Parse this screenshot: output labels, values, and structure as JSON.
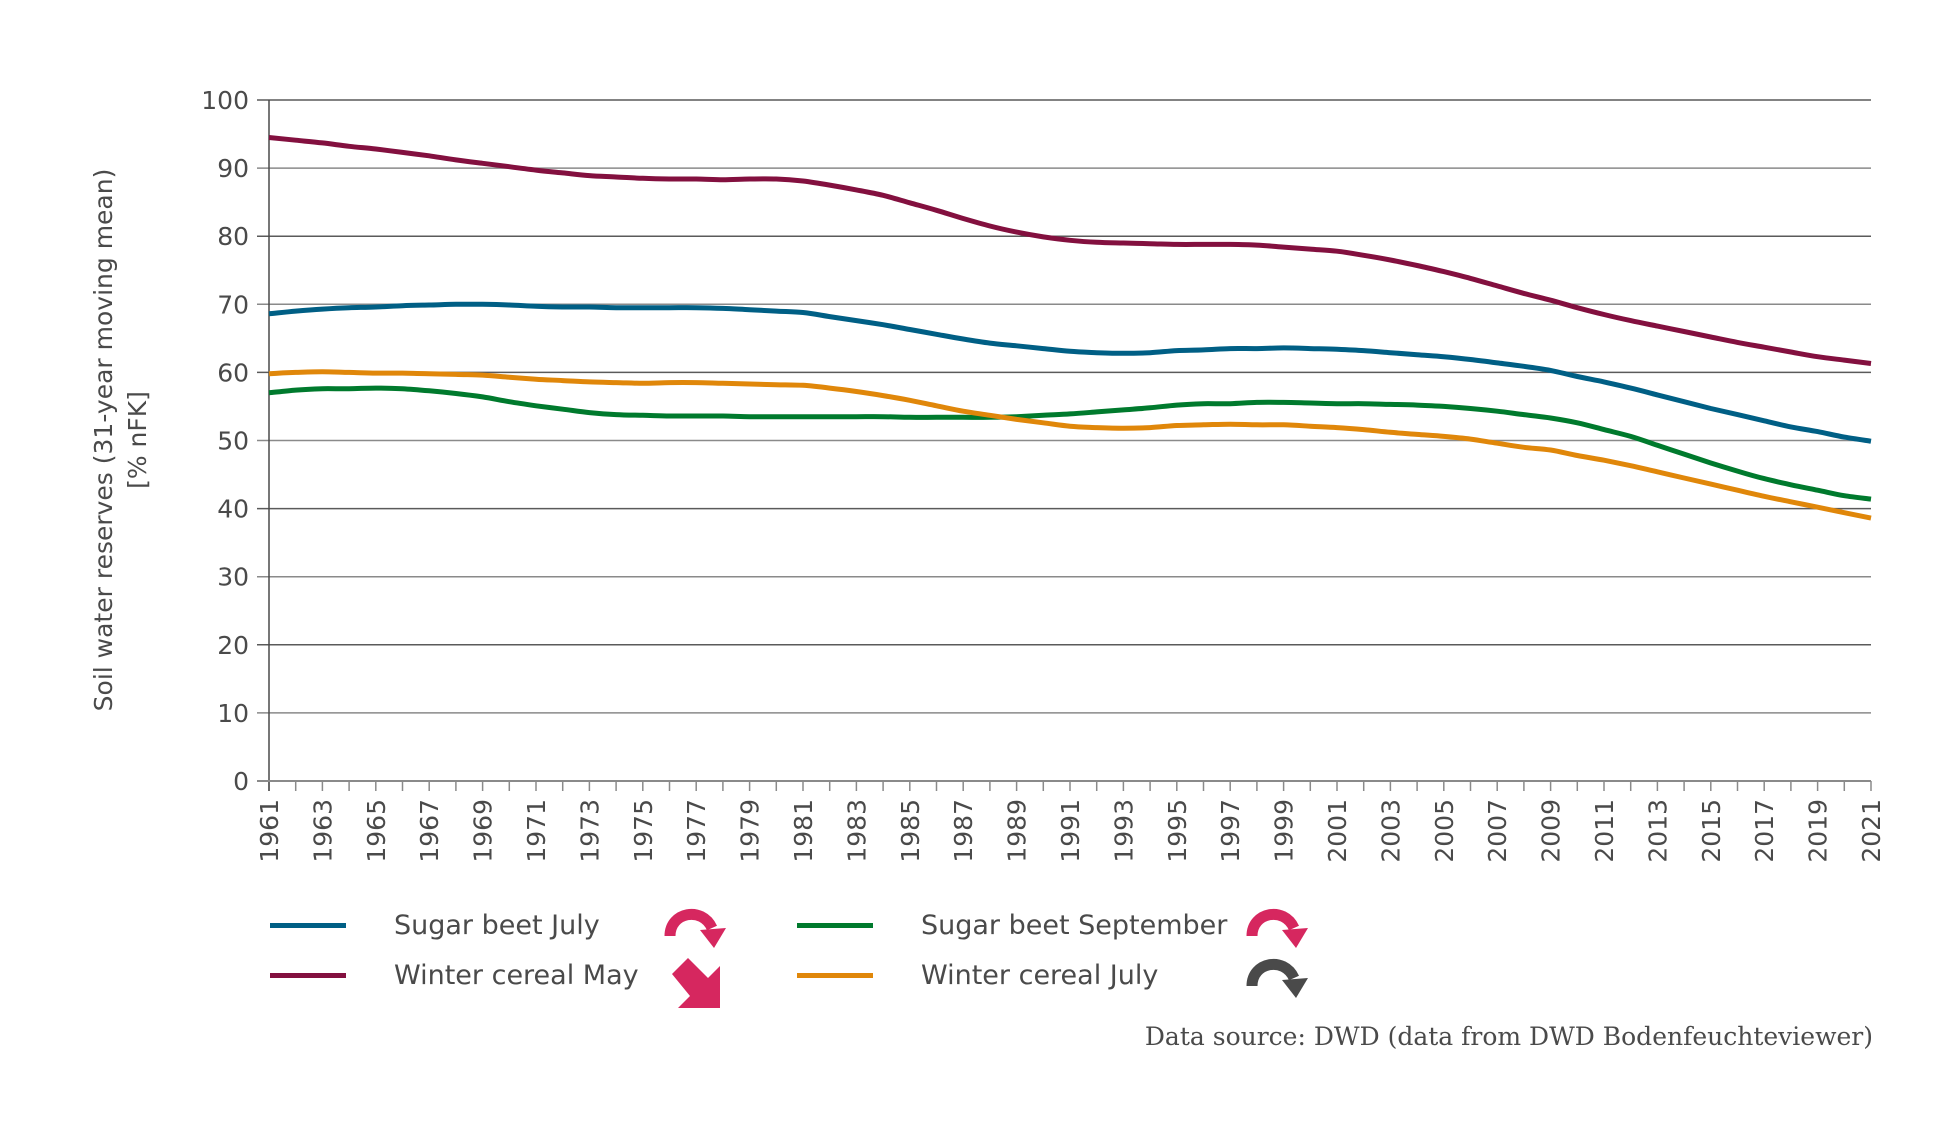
{
  "chart_data": {
    "type": "line",
    "title": "",
    "xlabel": "",
    "ylabel_lines": [
      "Soil water reserves (31-year moving mean)",
      "[% nFK]"
    ],
    "ylim": [
      0,
      100
    ],
    "yticks": [
      0,
      10,
      20,
      30,
      40,
      50,
      60,
      70,
      80,
      90,
      100
    ],
    "grid": true,
    "x": [
      1961,
      1962,
      1963,
      1964,
      1965,
      1966,
      1967,
      1968,
      1969,
      1970,
      1971,
      1972,
      1973,
      1974,
      1975,
      1976,
      1977,
      1978,
      1979,
      1980,
      1981,
      1982,
      1983,
      1984,
      1985,
      1986,
      1987,
      1988,
      1989,
      1990,
      1991,
      1992,
      1993,
      1994,
      1995,
      1996,
      1997,
      1998,
      1999,
      2000,
      2001,
      2002,
      2003,
      2004,
      2005,
      2006,
      2007,
      2008,
      2009,
      2010,
      2011,
      2012,
      2013,
      2014,
      2015,
      2016,
      2017,
      2018,
      2019,
      2020,
      2021
    ],
    "xticklabels": [
      "1961",
      "1963",
      "1965",
      "1967",
      "1969",
      "1971",
      "1973",
      "1975",
      "1977",
      "1979",
      "1981",
      "1983",
      "1985",
      "1987",
      "1989",
      "1991",
      "1993",
      "1995",
      "1997",
      "1999",
      "2001",
      "2003",
      "2005",
      "2007",
      "2009",
      "2011",
      "2013",
      "2015",
      "2017",
      "2019",
      "2021"
    ],
    "series": [
      {
        "name": "Sugar beet July",
        "color": "#005f85",
        "trend": "significant-decrease-arc",
        "trend_color": "#d6275f",
        "values": [
          68.6,
          69.0,
          69.3,
          69.5,
          69.6,
          69.8,
          69.9,
          70.0,
          70.0,
          69.9,
          69.7,
          69.6,
          69.6,
          69.5,
          69.5,
          69.5,
          69.5,
          69.4,
          69.2,
          69.0,
          68.8,
          68.2,
          67.6,
          67.0,
          66.3,
          65.6,
          64.9,
          64.3,
          63.9,
          63.5,
          63.1,
          62.9,
          62.8,
          62.9,
          63.2,
          63.3,
          63.5,
          63.5,
          63.6,
          63.5,
          63.4,
          63.2,
          62.9,
          62.6,
          62.3,
          61.9,
          61.4,
          60.9,
          60.3,
          59.4,
          58.6,
          57.7,
          56.7,
          55.7,
          54.7,
          53.8,
          52.9,
          52.0,
          51.3,
          50.5,
          49.9
        ]
      },
      {
        "name": "Winter cereal May",
        "color": "#83103f",
        "trend": "significant-decrease-diagonal",
        "trend_color": "#d6275f",
        "values": [
          94.5,
          94.1,
          93.7,
          93.2,
          92.8,
          92.3,
          91.8,
          91.2,
          90.7,
          90.2,
          89.7,
          89.3,
          88.9,
          88.7,
          88.5,
          88.4,
          88.4,
          88.3,
          88.4,
          88.4,
          88.1,
          87.5,
          86.8,
          86.0,
          84.9,
          83.8,
          82.6,
          81.5,
          80.6,
          79.9,
          79.4,
          79.1,
          79.0,
          78.9,
          78.8,
          78.8,
          78.8,
          78.7,
          78.4,
          78.1,
          77.8,
          77.2,
          76.5,
          75.7,
          74.8,
          73.8,
          72.7,
          71.6,
          70.6,
          69.5,
          68.5,
          67.6,
          66.8,
          66.0,
          65.2,
          64.4,
          63.7,
          63.0,
          62.3,
          61.8,
          61.3
        ]
      },
      {
        "name": "Sugar beet September",
        "color": "#007a2d",
        "trend": "significant-decrease-arc",
        "trend_color": "#d6275f",
        "values": [
          57.0,
          57.4,
          57.6,
          57.6,
          57.7,
          57.6,
          57.3,
          56.9,
          56.4,
          55.7,
          55.1,
          54.6,
          54.1,
          53.8,
          53.7,
          53.6,
          53.6,
          53.6,
          53.5,
          53.5,
          53.5,
          53.5,
          53.5,
          53.5,
          53.4,
          53.4,
          53.4,
          53.4,
          53.5,
          53.7,
          53.9,
          54.2,
          54.5,
          54.8,
          55.2,
          55.4,
          55.4,
          55.6,
          55.6,
          55.5,
          55.4,
          55.4,
          55.3,
          55.2,
          55.0,
          54.7,
          54.3,
          53.8,
          53.3,
          52.6,
          51.6,
          50.6,
          49.3,
          48.0,
          46.7,
          45.5,
          44.4,
          43.5,
          42.7,
          41.9,
          41.4
        ]
      },
      {
        "name": "Winter cereal July",
        "color": "#e0870a",
        "trend": "no-significant-trend-arc",
        "trend_color": "#4a4a4a",
        "values": [
          59.8,
          60.0,
          60.1,
          60.0,
          59.9,
          59.9,
          59.8,
          59.7,
          59.6,
          59.3,
          59.0,
          58.8,
          58.6,
          58.5,
          58.4,
          58.5,
          58.5,
          58.4,
          58.3,
          58.2,
          58.1,
          57.7,
          57.2,
          56.6,
          55.9,
          55.1,
          54.3,
          53.7,
          53.1,
          52.6,
          52.1,
          51.9,
          51.8,
          51.9,
          52.2,
          52.3,
          52.4,
          52.3,
          52.3,
          52.1,
          51.9,
          51.6,
          51.2,
          50.9,
          50.6,
          50.2,
          49.6,
          49.0,
          48.6,
          47.8,
          47.1,
          46.3,
          45.4,
          44.5,
          43.6,
          42.7,
          41.8,
          41.0,
          40.2,
          39.4,
          38.6
        ]
      }
    ]
  },
  "legend": {
    "items": [
      {
        "label": "Sugar beet July",
        "trend_icon": "curved-down-arrow-icon"
      },
      {
        "label": "Winter cereal May",
        "trend_icon": "diagonal-down-arrow-icon"
      },
      {
        "label": "Sugar beet September",
        "trend_icon": "curved-down-arrow-icon"
      },
      {
        "label": "Winter cereal July",
        "trend_icon": "curved-down-arrow-icon"
      }
    ]
  },
  "source": "Data source: DWD (data from DWD Bodenfeuchteviewer)"
}
